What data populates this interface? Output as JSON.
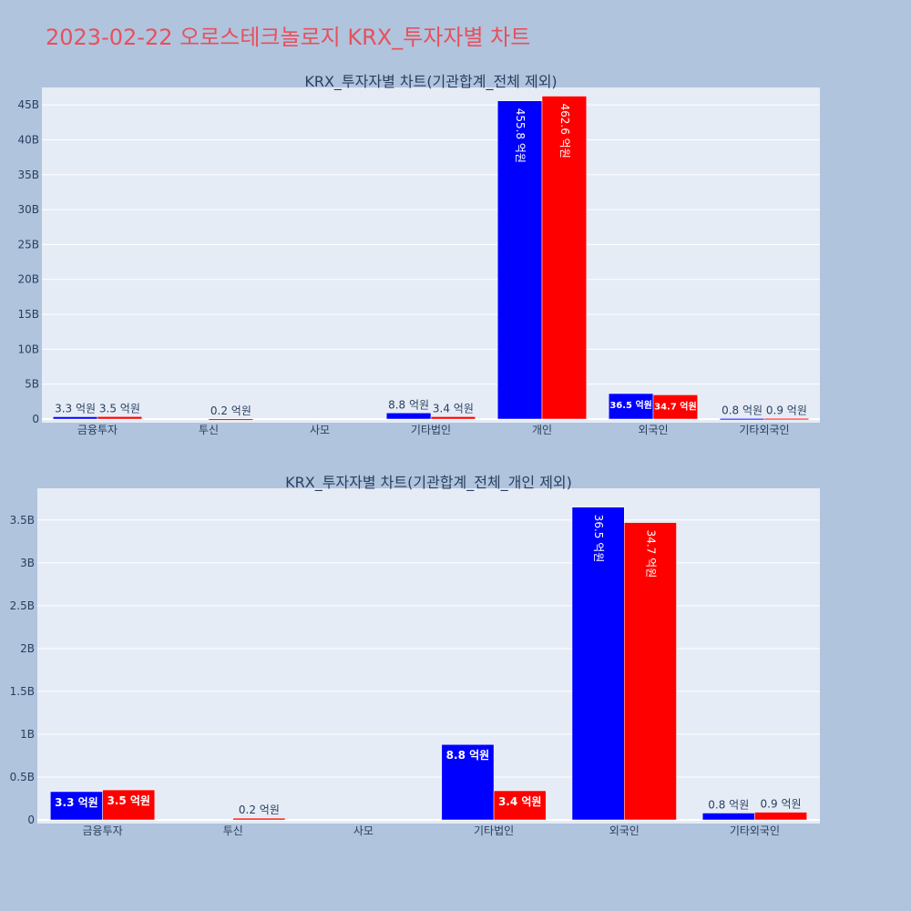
{
  "page_title": "2023-02-22 오로스테크놀로지 KRX_투자자별 차트",
  "colors": {
    "background": "#b0c4de",
    "plot_bg": "#e5ecf6",
    "title": "#e8505b",
    "series_a": "#0000ff",
    "series_b": "#ff0000",
    "grid": "#ffffff"
  },
  "chart_data": [
    {
      "type": "bar",
      "title": "KRX_투자자별 차트(기관합계_전체 제외)",
      "categories": [
        "금융투자",
        "투신",
        "사모",
        "기타법인",
        "개인",
        "외국인",
        "기타외국인"
      ],
      "ylim": [
        0,
        47500000000
      ],
      "yticks": [
        0,
        5000000000,
        10000000000,
        15000000000,
        20000000000,
        25000000000,
        30000000000,
        35000000000,
        40000000000,
        45000000000
      ],
      "ytick_labels": [
        "0",
        "5B",
        "10B",
        "15B",
        "20B",
        "25B",
        "30B",
        "35B",
        "40B",
        "45B"
      ],
      "grid": true,
      "series": [
        {
          "color": "#0000ff",
          "values": [
            330000000,
            0,
            0,
            880000000,
            45580000000,
            3650000000,
            80000000
          ],
          "labels": [
            "3.3 억원",
            "",
            "",
            "8.8 억원",
            "455.8 억원",
            "36.5 억원",
            "0.8 억원"
          ]
        },
        {
          "color": "#ff0000",
          "values": [
            350000000,
            20000000,
            0,
            340000000,
            46260000000,
            3470000000,
            90000000
          ],
          "labels": [
            "3.5 억원",
            "0.2 억원",
            "",
            "3.4 억원",
            "462.6 억원",
            "34.7 억원",
            "0.9 억원"
          ]
        }
      ]
    },
    {
      "type": "bar",
      "title": "KRX_투자자별 차트(기관합계_전체_개인 제외)",
      "categories": [
        "금융투자",
        "투신",
        "사모",
        "기타법인",
        "외국인",
        "기타외국인"
      ],
      "ylim": [
        0,
        3870000000
      ],
      "yticks": [
        0,
        500000000,
        1000000000,
        1500000000,
        2000000000,
        2500000000,
        3000000000,
        3500000000
      ],
      "ytick_labels": [
        "0",
        "0.5B",
        "1B",
        "1.5B",
        "2B",
        "2.5B",
        "3B",
        "3.5B"
      ],
      "grid": true,
      "series": [
        {
          "color": "#0000ff",
          "values": [
            330000000,
            0,
            0,
            880000000,
            3650000000,
            80000000
          ],
          "labels": [
            "3.3 억원",
            "",
            "",
            "8.8 억원",
            "36.5 억원",
            "0.8 억원"
          ]
        },
        {
          "color": "#ff0000",
          "values": [
            350000000,
            20000000,
            0,
            340000000,
            3470000000,
            90000000
          ],
          "labels": [
            "3.5 억원",
            "0.2 억원",
            "",
            "3.4 억원",
            "34.7 억원",
            "0.9 억원"
          ]
        }
      ]
    }
  ]
}
